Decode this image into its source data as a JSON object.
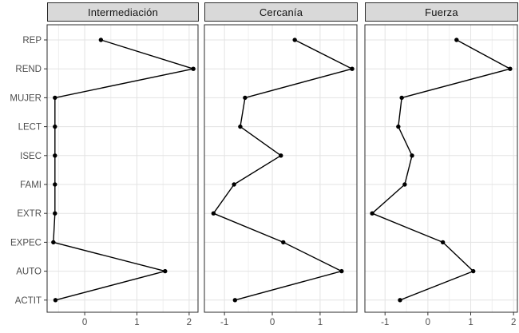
{
  "chart_data": {
    "type": "line",
    "description": "Faceted dot-and-line centrality profile plot (z-scores), three panels sharing one categorical y-axis",
    "title": "",
    "xlabel": "",
    "ylabel": "",
    "legend": "none",
    "grid": "light grey major gridlines at ticks and category rows, minor vertical gridlines at 0.5 steps",
    "categories": [
      "REP",
      "REND",
      "MUJER",
      "LECT",
      "ISEC",
      "FAMI",
      "EXTR",
      "EXPEC",
      "AUTO",
      "ACTIT"
    ],
    "facets": [
      {
        "title": "Intermediación",
        "xlim": [
          -0.72,
          2.17
        ],
        "xticks": [
          0,
          1,
          2
        ],
        "values": [
          0.31,
          2.08,
          -0.57,
          -0.57,
          -0.57,
          -0.57,
          -0.57,
          -0.6,
          1.54,
          -0.56
        ]
      },
      {
        "title": "Cercanía",
        "xlim": [
          -1.42,
          1.77
        ],
        "xticks": [
          -1,
          0,
          1
        ],
        "values": [
          0.47,
          1.67,
          -0.57,
          -0.67,
          0.18,
          -0.8,
          -1.23,
          0.23,
          1.45,
          -0.78
        ]
      },
      {
        "title": "Fuerza",
        "xlim": [
          -1.47,
          2.09
        ],
        "xticks": [
          -1,
          0,
          1,
          2
        ],
        "values": [
          0.67,
          1.92,
          -0.61,
          -0.69,
          -0.37,
          -0.54,
          -1.3,
          0.35,
          1.06,
          -0.65
        ]
      }
    ]
  },
  "style": {
    "background": "#ffffff",
    "strip_fill": "#d9d9d9",
    "strip_border": "#2b2b2b",
    "strip_text": "#141414",
    "panel_border": "#2b2b2b",
    "grid_major": "#e3e3e3",
    "grid_minor": "#efefef",
    "line": "#000000",
    "point": "#000000",
    "axis_text": "#4d4d4d",
    "tick": "#333333"
  }
}
